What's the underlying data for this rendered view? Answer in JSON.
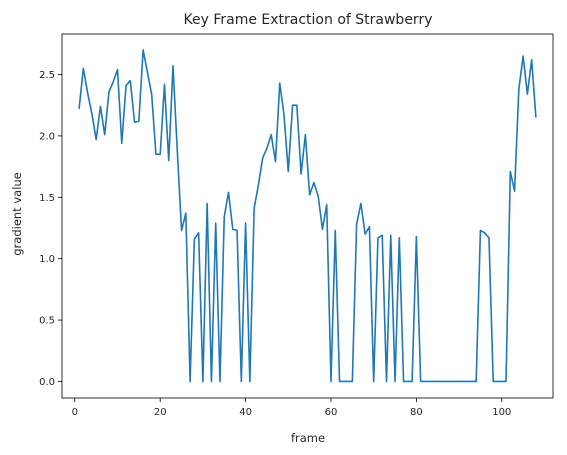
{
  "chart_data": {
    "type": "line",
    "title": "Key Frame Extraction of Strawberry",
    "xlabel": "frame",
    "ylabel": "gradient value",
    "xlim": [
      -3,
      112
    ],
    "ylim": [
      -0.135,
      2.83
    ],
    "xticks": [
      0,
      20,
      40,
      60,
      80,
      100
    ],
    "xtick_labels": [
      "0",
      "20",
      "40",
      "60",
      "80",
      "100"
    ],
    "yticks": [
      0.0,
      0.5,
      1.0,
      1.5,
      2.0,
      2.5
    ],
    "ytick_labels": [
      "0.0",
      "0.5",
      "1.0",
      "1.5",
      "2.0",
      "2.5"
    ],
    "grid": false,
    "series_color": "#1f77b4",
    "series": [
      {
        "x": [
          1,
          2,
          3,
          4,
          5,
          6,
          7,
          8,
          9,
          10,
          11,
          12,
          13,
          14,
          15,
          16,
          17,
          18,
          19,
          20,
          21,
          22,
          23,
          24,
          25,
          26,
          27,
          28,
          29,
          30,
          31,
          32,
          33,
          34,
          35,
          36,
          37,
          38,
          39,
          40,
          41,
          42,
          43,
          44,
          45,
          46,
          47,
          48,
          49,
          50,
          51,
          52,
          53,
          54,
          55,
          56,
          57,
          58,
          59,
          60,
          61,
          62,
          63,
          64,
          65,
          66,
          67,
          68,
          69,
          70,
          71,
          72,
          73,
          74,
          75,
          76,
          77,
          78,
          79,
          80,
          81,
          82,
          83,
          84,
          85,
          86,
          87,
          88,
          89,
          90,
          91,
          92,
          93,
          94,
          95,
          96,
          97,
          98,
          99,
          100,
          101,
          102,
          103,
          104,
          105,
          106,
          107,
          108
        ],
        "y": [
          2.22,
          2.55,
          2.35,
          2.18,
          1.97,
          2.24,
          2.01,
          2.36,
          2.44,
          2.54,
          1.94,
          2.41,
          2.45,
          2.11,
          2.12,
          2.7,
          2.52,
          2.34,
          1.85,
          1.85,
          2.42,
          1.8,
          2.57,
          1.88,
          1.23,
          1.37,
          0.0,
          1.16,
          1.21,
          0.0,
          1.45,
          0.0,
          1.29,
          0.0,
          1.34,
          1.54,
          1.24,
          1.23,
          0.0,
          1.29,
          0.0,
          1.41,
          1.6,
          1.82,
          1.9,
          2.01,
          1.79,
          2.43,
          2.17,
          1.71,
          2.25,
          2.25,
          1.69,
          2.01,
          1.52,
          1.62,
          1.51,
          1.24,
          1.44,
          0.0,
          1.23,
          0.0,
          0.0,
          0.0,
          0.0,
          1.28,
          1.45,
          1.2,
          1.26,
          0.0,
          1.17,
          1.19,
          0.0,
          1.19,
          0.0,
          1.17,
          0.0,
          0.0,
          0.0,
          1.18,
          0.0,
          0.0,
          0.0,
          0.0,
          0.0,
          0.0,
          0.0,
          0.0,
          0.0,
          0.0,
          0.0,
          0.0,
          0.0,
          0.0,
          1.23,
          1.21,
          1.17,
          0.0,
          0.0,
          0.0,
          0.0,
          1.71,
          1.55,
          2.38,
          2.65,
          2.34,
          2.62,
          2.15
        ]
      }
    ]
  }
}
